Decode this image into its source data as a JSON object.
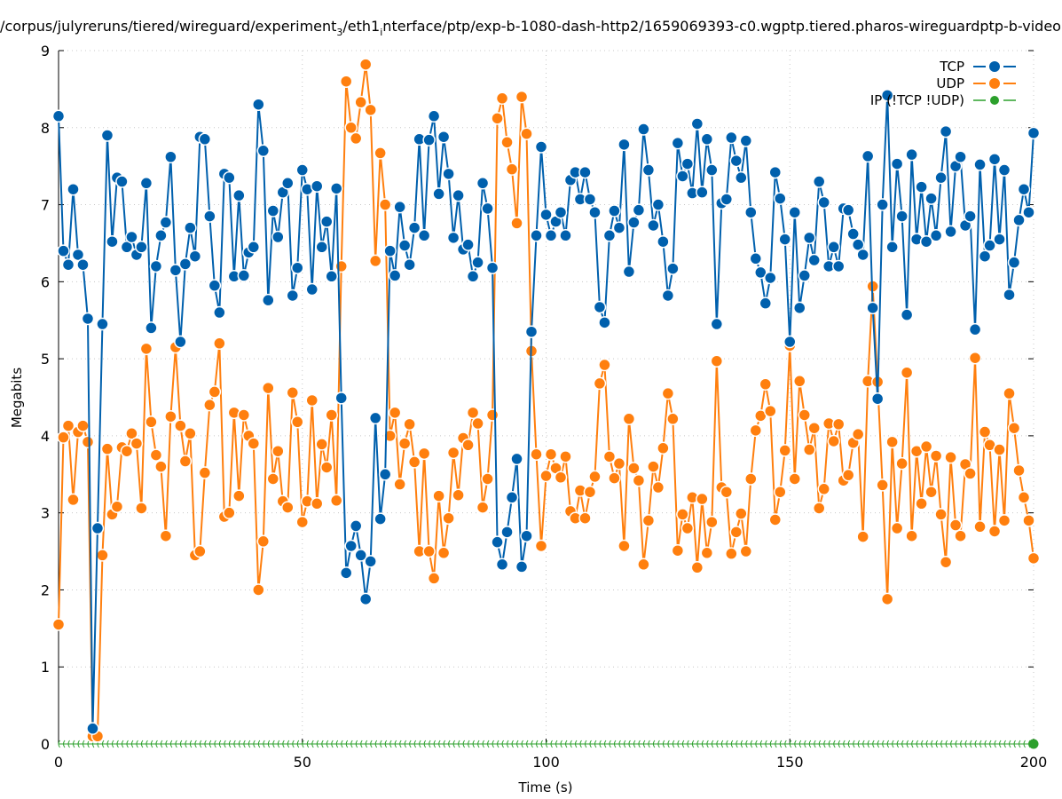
{
  "chart_data": {
    "type": "line",
    "title": "/corpus/julyreruns/tiered/wireguard/experiment_3/eth1_interface/ptp/exp-b-1080-dash-http2/1659069393-c0.wgptp.tiered.pharos-wireguardptp-b-video",
    "title_parts": {
      "a": "/corpus/julyreruns/tiered/wireguard/experiment",
      "sub1": "3",
      "b": "/eth1",
      "sub2": "i",
      "c": "nterface/ptp/exp-b-1080-dash-http2/1659069393-c0.wgptp.tiered.pharos-wireguardptp-b-video"
    },
    "xlabel": "Time (s)",
    "ylabel": "Megabits",
    "xlim": [
      0,
      200
    ],
    "ylim": [
      0,
      9
    ],
    "xticks": [
      "0",
      "50",
      "100",
      "150",
      "200"
    ],
    "xtick_values": [
      0,
      50,
      100,
      150,
      200
    ],
    "yticks": [
      "0",
      "1",
      "2",
      "3",
      "4",
      "5",
      "6",
      "7",
      "8",
      "9"
    ],
    "ytick_values": [
      0,
      1,
      2,
      3,
      4,
      5,
      6,
      7,
      8,
      9
    ],
    "grid": true,
    "legend_position": "top-right",
    "x_start": 0,
    "x_step": 1,
    "series": [
      {
        "name": "TCP",
        "color": "#0060ad",
        "values": [
          8.15,
          6.4,
          6.22,
          7.2,
          6.35,
          6.22,
          5.52,
          0.2,
          2.8,
          5.45,
          7.9,
          6.52,
          7.35,
          7.3,
          6.45,
          6.58,
          6.35,
          6.45,
          7.28,
          5.4,
          6.2,
          6.6,
          6.77,
          7.62,
          6.15,
          5.22,
          6.23,
          6.7,
          6.33,
          7.88,
          7.85,
          6.85,
          5.95,
          5.6,
          7.4,
          7.35,
          6.07,
          7.12,
          6.08,
          6.38,
          6.45,
          8.3,
          7.7,
          5.76,
          6.92,
          6.58,
          7.16,
          7.28,
          5.82,
          6.18,
          7.45,
          7.2,
          5.9,
          7.24,
          6.45,
          6.78,
          6.07,
          7.21,
          4.49,
          2.22,
          2.57,
          2.83,
          2.45,
          1.88,
          2.37,
          4.23,
          2.92,
          3.5,
          6.4,
          6.08,
          6.97,
          6.47,
          6.22,
          6.7,
          7.85,
          6.6,
          7.84,
          8.15,
          7.14,
          7.88,
          7.4,
          6.57,
          7.12,
          6.42,
          6.48,
          6.07,
          6.25,
          7.28,
          6.95,
          6.18,
          2.62,
          2.33,
          2.75,
          3.2,
          3.7,
          2.3,
          2.7,
          5.35,
          6.6,
          7.75,
          6.87,
          6.6,
          6.78,
          6.9,
          6.6,
          7.32,
          7.42,
          7.07,
          7.42,
          7.07,
          6.9,
          5.67,
          5.47,
          6.6,
          6.92,
          6.7,
          7.78,
          6.13,
          6.77,
          6.93,
          7.98,
          7.45,
          6.73,
          7.0,
          6.52,
          5.82,
          6.17,
          7.8,
          7.37,
          7.53,
          7.15,
          8.05,
          7.16,
          7.85,
          7.45,
          5.45,
          7.02,
          7.07,
          7.87,
          7.57,
          7.35,
          7.83,
          6.9,
          6.3,
          6.12,
          5.72,
          6.05,
          7.42,
          7.08,
          6.55,
          5.22,
          6.9,
          5.66,
          6.08,
          6.57,
          6.28,
          7.3,
          7.03,
          6.2,
          6.45,
          6.2,
          6.95,
          6.93,
          6.62,
          6.48,
          6.35,
          7.63,
          5.66,
          4.48,
          7.0,
          8.42,
          6.45,
          7.53,
          6.85,
          5.57,
          7.65,
          6.55,
          7.23,
          6.52,
          7.08,
          6.6,
          7.35,
          7.95,
          6.65,
          7.5,
          7.62,
          6.73,
          6.85,
          5.38,
          7.52,
          6.33,
          6.47,
          7.59,
          6.55,
          7.45,
          5.83,
          6.25,
          6.8,
          7.2,
          6.9,
          7.93
        ]
      },
      {
        "name": "UDP",
        "color": "#ff7f0e",
        "values": [
          1.55,
          3.98,
          4.13,
          3.17,
          4.05,
          4.13,
          3.92,
          0.1,
          0.1,
          2.45,
          3.83,
          2.98,
          3.08,
          3.85,
          3.8,
          4.03,
          3.9,
          3.06,
          5.13,
          4.18,
          3.75,
          3.6,
          2.7,
          4.25,
          5.15,
          4.13,
          3.67,
          4.03,
          2.45,
          2.5,
          3.52,
          4.4,
          4.57,
          5.2,
          2.95,
          3.0,
          4.3,
          3.22,
          4.27,
          4.0,
          3.9,
          2.0,
          2.63,
          4.62,
          3.44,
          3.8,
          3.15,
          3.07,
          4.56,
          4.18,
          2.88,
          3.15,
          4.46,
          3.12,
          3.89,
          3.59,
          4.27,
          3.16,
          6.2,
          8.6,
          8.0,
          7.86,
          8.33,
          8.82,
          8.23,
          6.27,
          7.67,
          7.0,
          4.0,
          4.3,
          3.37,
          3.9,
          4.15,
          3.66,
          2.5,
          3.77,
          2.5,
          2.15,
          3.22,
          2.48,
          2.93,
          3.78,
          3.23,
          3.97,
          3.88,
          4.3,
          4.16,
          3.07,
          3.44,
          4.27,
          8.12,
          8.38,
          7.81,
          7.46,
          6.76,
          8.4,
          7.92,
          5.1,
          3.76,
          2.57,
          3.48,
          3.76,
          3.58,
          3.46,
          3.73,
          3.02,
          2.93,
          3.29,
          2.93,
          3.27,
          3.47,
          4.68,
          4.92,
          3.73,
          3.45,
          3.64,
          2.57,
          4.22,
          3.58,
          3.42,
          2.33,
          2.9,
          3.6,
          3.33,
          3.84,
          4.55,
          4.22,
          2.51,
          2.98,
          2.8,
          3.2,
          2.29,
          3.18,
          2.48,
          2.88,
          4.97,
          3.33,
          3.27,
          2.47,
          2.75,
          2.99,
          2.5,
          3.44,
          4.07,
          4.26,
          4.67,
          4.32,
          2.91,
          3.27,
          3.81,
          5.17,
          3.44,
          4.71,
          4.27,
          3.82,
          4.1,
          3.06,
          3.31,
          4.16,
          3.93,
          4.15,
          3.42,
          3.49,
          3.91,
          4.02,
          2.69,
          4.71,
          5.94,
          4.7,
          3.36,
          1.88,
          3.92,
          2.8,
          3.64,
          4.82,
          2.7,
          3.8,
          3.12,
          3.86,
          3.27,
          3.74,
          2.98,
          2.36,
          3.72,
          2.84,
          2.7,
          3.63,
          3.51,
          5.01,
          2.82,
          4.05,
          3.88,
          2.76,
          3.82,
          2.9,
          4.55,
          4.1,
          3.55,
          3.2,
          2.9,
          2.41
        ]
      },
      {
        "name": "IP (!TCP  !UDP)",
        "color": "#2ca02c",
        "values": "all zero (0 at every second from 0 to 200)"
      }
    ]
  }
}
